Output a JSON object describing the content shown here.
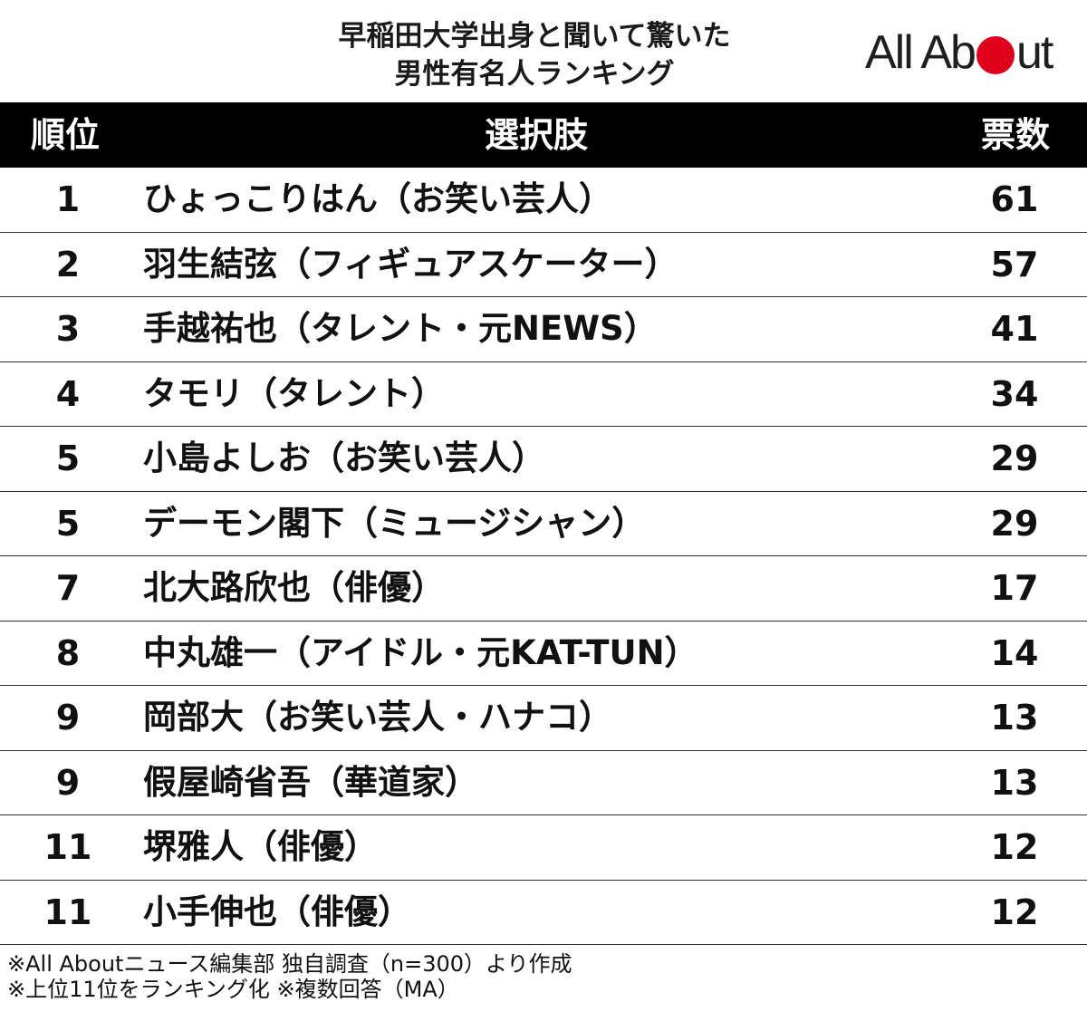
{
  "title": {
    "line1": "早稲田大学出身と聞いて驚いた",
    "line2": "男性有名人ランキング"
  },
  "logo": {
    "left_text": "All Ab",
    "right_text": "ut",
    "dot_color": "#e0001b"
  },
  "table": {
    "headers": {
      "rank": "順位",
      "choice": "選択肢",
      "votes": "票数"
    },
    "rows": [
      {
        "rank": "1",
        "name": "ひょっこりはん（お笑い芸人）",
        "votes": "61"
      },
      {
        "rank": "2",
        "name": "羽生結弦（フィギュアスケーター）",
        "votes": "57"
      },
      {
        "rank": "3",
        "name": "手越祐也（タレント・元NEWS）",
        "votes": "41"
      },
      {
        "rank": "4",
        "name": "タモリ（タレント）",
        "votes": "34"
      },
      {
        "rank": "5",
        "name": "小島よしお（お笑い芸人）",
        "votes": "29"
      },
      {
        "rank": "5",
        "name": "デーモン閣下（ミュージシャン）",
        "votes": "29"
      },
      {
        "rank": "7",
        "name": "北大路欣也（俳優）",
        "votes": "17"
      },
      {
        "rank": "8",
        "name": "中丸雄一（アイドル・元KAT-TUN）",
        "votes": "14"
      },
      {
        "rank": "9",
        "name": "岡部大（お笑い芸人・ハナコ）",
        "votes": "13"
      },
      {
        "rank": "9",
        "name": "假屋崎省吾（華道家）",
        "votes": "13"
      },
      {
        "rank": "11",
        "name": "堺雅人（俳優）",
        "votes": "12"
      },
      {
        "rank": "11",
        "name": "小手伸也（俳優）",
        "votes": "12"
      }
    ]
  },
  "footer": {
    "line1": "※All Aboutニュース編集部 独自調査（n=300）より作成",
    "line2": "※上位11位をランキング化 ※複数回答（MA）"
  }
}
